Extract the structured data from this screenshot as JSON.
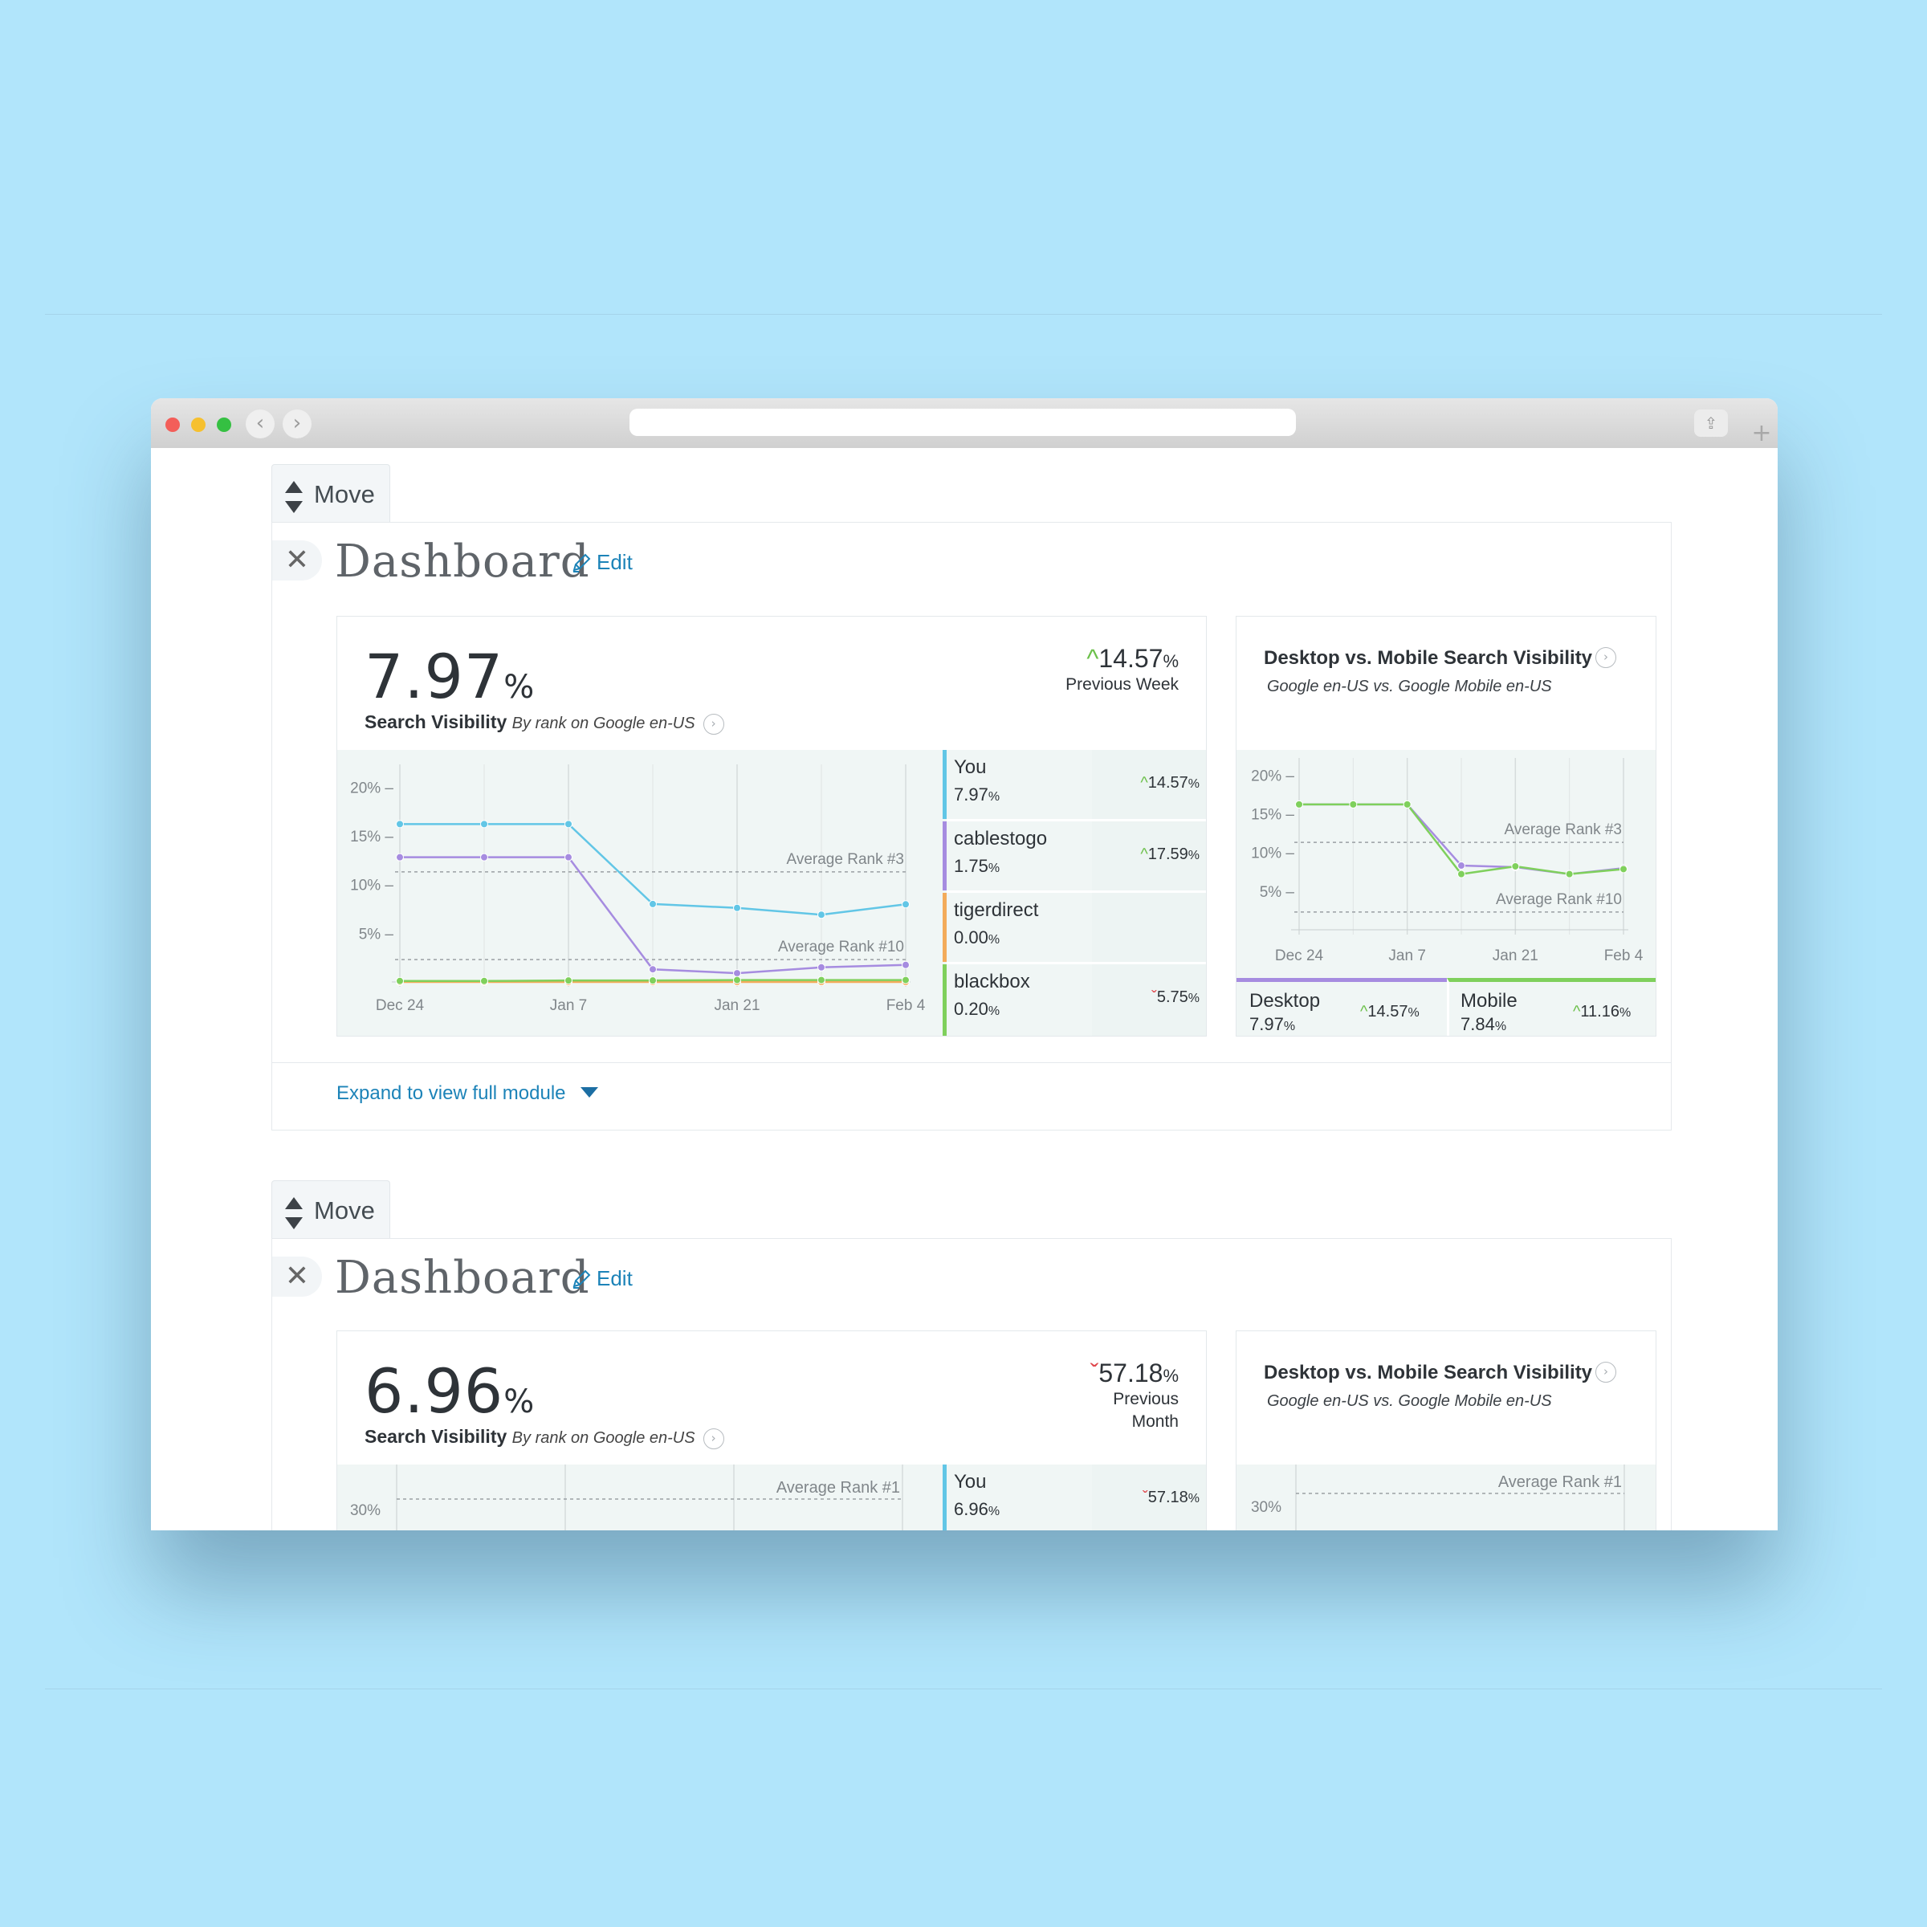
{
  "modules": [
    {
      "move_label": "Move",
      "close_glyph": "✕",
      "title": "Dashboard",
      "edit_label": "Edit",
      "visibility": {
        "value": "7.97",
        "unit": "%",
        "label": "Search Visibility",
        "sublabel": "By rank on Google en-US",
        "change": "14.57",
        "change_unit": "%",
        "change_direction": "up",
        "change_period": "Previous Week"
      },
      "legend": [
        {
          "name": "You",
          "value": "7.97",
          "unit": "%",
          "change": "14.57",
          "change_unit": "%",
          "direction": "up",
          "color": "#62c6e6"
        },
        {
          "name": "cablestogo",
          "value": "1.75",
          "unit": "%",
          "change": "17.59",
          "change_unit": "%",
          "direction": "up",
          "color": "#a68ce0"
        },
        {
          "name": "tigerdirect",
          "value": "0.00",
          "unit": "%",
          "change": "",
          "change_unit": "",
          "direction": "none",
          "color": "#f3ab5a"
        },
        {
          "name": "blackbox",
          "value": "0.20",
          "unit": "%",
          "change": "5.75",
          "change_unit": "%",
          "direction": "down",
          "color": "#7fd05c"
        }
      ],
      "device": {
        "title": "Desktop vs. Mobile Search Visibility",
        "subtitle": "Google en-US vs. Google Mobile en-US",
        "desktop": {
          "name": "Desktop",
          "value": "7.97",
          "unit": "%",
          "change": "14.57",
          "change_unit": "%",
          "direction": "up",
          "color": "#a68ce0"
        },
        "mobile": {
          "name": "Mobile",
          "value": "7.84",
          "unit": "%",
          "change": "11.16",
          "change_unit": "%",
          "direction": "up",
          "color": "#7fd05c"
        }
      },
      "expand_label": "Expand to view full module"
    },
    {
      "move_label": "Move",
      "close_glyph": "✕",
      "title": "Dashboard",
      "edit_label": "Edit",
      "visibility": {
        "value": "6.96",
        "unit": "%",
        "label": "Search Visibility",
        "sublabel": "By rank on Google en-US",
        "change": "57.18",
        "change_unit": "%",
        "change_direction": "down",
        "change_period_line1": "Previous",
        "change_period_line2": "Month"
      },
      "legend": [
        {
          "name": "You",
          "value": "6.96",
          "unit": "%",
          "change": "57.18",
          "change_unit": "%",
          "direction": "down",
          "color": "#62c6e6"
        }
      ],
      "device": {
        "title": "Desktop vs. Mobile Search Visibility",
        "subtitle": "Google en-US vs. Google Mobile en-US"
      },
      "partial_chart": {
        "ytick": "30%",
        "ref_label": "Average Rank #1",
        "ref_label_right": "Average Rank #1",
        "ytick_right": "30%"
      }
    }
  ],
  "chart_data": [
    {
      "type": "line",
      "title": "",
      "x": [
        "Dec 24",
        "Dec 31",
        "Jan 7",
        "Jan 14",
        "Jan 21",
        "Jan 28",
        "Feb 4"
      ],
      "xtick_labels": [
        "Dec 24",
        "Jan 7",
        "Jan 21",
        "Feb 4"
      ],
      "yticks": [
        "5%",
        "10%",
        "15%",
        "20%"
      ],
      "ylim": [
        0,
        22
      ],
      "series": [
        {
          "name": "You",
          "color": "#62c6e6",
          "values": [
            16.2,
            16.2,
            16.2,
            8.0,
            7.6,
            6.9,
            7.97
          ]
        },
        {
          "name": "cablestogo",
          "color": "#a68ce0",
          "values": [
            12.8,
            12.8,
            12.8,
            1.3,
            0.9,
            1.5,
            1.75
          ]
        },
        {
          "name": "tigerdirect",
          "color": "#f3ab5a",
          "values": [
            0.0,
            0.0,
            0.0,
            0.0,
            0.0,
            0.0,
            0.0
          ]
        },
        {
          "name": "blackbox",
          "color": "#7fd05c",
          "values": [
            0.1,
            0.1,
            0.15,
            0.15,
            0.2,
            0.2,
            0.2
          ]
        }
      ],
      "reference_lines": [
        {
          "label": "Average Rank #3",
          "value": 11.3
        },
        {
          "label": "Average Rank #10",
          "value": 2.3
        }
      ],
      "grid": true
    },
    {
      "type": "line",
      "title": "",
      "x": [
        "Dec 24",
        "Dec 31",
        "Jan 7",
        "Jan 14",
        "Jan 21",
        "Jan 28",
        "Feb 4"
      ],
      "xtick_labels": [
        "Dec 24",
        "Jan 7",
        "Jan 21",
        "Feb 4"
      ],
      "yticks": [
        "5%",
        "10%",
        "15%",
        "20%"
      ],
      "ylim": [
        0,
        22
      ],
      "series": [
        {
          "name": "Desktop",
          "color": "#a68ce0",
          "values": [
            16.2,
            16.2,
            16.2,
            8.3,
            8.1,
            7.2,
            7.97
          ]
        },
        {
          "name": "Mobile",
          "color": "#7fd05c",
          "values": [
            16.2,
            16.2,
            16.2,
            7.2,
            8.2,
            7.2,
            7.84
          ]
        }
      ],
      "reference_lines": [
        {
          "label": "Average Rank #3",
          "value": 11.3
        },
        {
          "label": "Average Rank #10",
          "value": 2.3
        }
      ],
      "grid": true
    }
  ]
}
